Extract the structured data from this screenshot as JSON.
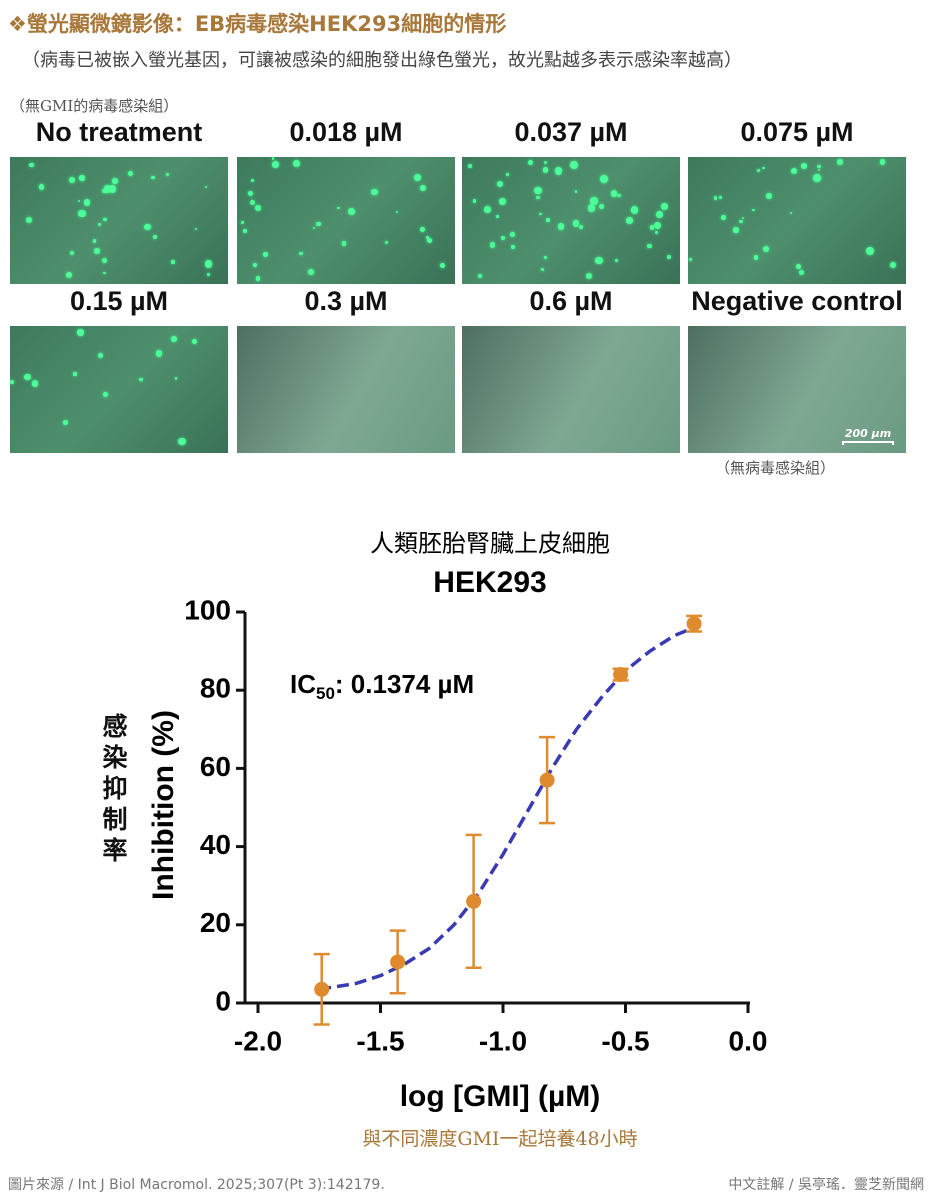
{
  "header": {
    "title": "❖螢光顯微鏡影像：EB病毒感染HEK293細胞的情形",
    "subtitle": "（病毒已被嵌入螢光基因，可讓被感染的細胞發出綠色螢光，故光點越多表示感染率越高）",
    "note_left": "（無GMI的病毒感染組）",
    "note_right": "（無病毒感染組）",
    "scale_bar": "200 µm",
    "panels": [
      "No treatment",
      "0.018 µM",
      "0.037 µM",
      "0.075 µM",
      "0.15 µM",
      "0.3 µM",
      "0.6 µM",
      "Negative control"
    ]
  },
  "chart_data": {
    "type": "scatter",
    "title": "人類胚胎腎臟上皮細胞",
    "subtitle": "HEK293",
    "ylabel_zh": "感染抑制率",
    "ylabel": "Inhibition (%)",
    "xlabel": "log [GMI] (µM)",
    "annotation": {
      "prefix": "IC",
      "subscript": "50",
      "text": ": 0.1374 µM"
    },
    "caption": "與不同濃度GMI一起培養48小時",
    "xlim": [
      -2,
      0
    ],
    "xticks": [
      {
        "value": -2,
        "label": "-2.0"
      },
      -1.5,
      {
        "value": -1,
        "label": "-1.0"
      },
      -0.5,
      {
        "value": 0,
        "label": "0.0"
      }
    ],
    "ylim": [
      0,
      100
    ],
    "yticks": [
      0,
      20,
      40,
      60,
      80,
      100
    ],
    "series": [
      {
        "color": "#e08a2e",
        "x": [
          -1.74,
          -1.43,
          -1.12,
          -0.82,
          -0.52,
          -0.22
        ],
        "values": [
          3.5,
          10.5,
          26,
          57,
          84,
          97
        ],
        "errors": [
          9,
          8,
          17,
          11,
          1.5,
          2
        ]
      }
    ],
    "fit": {
      "color": "#3a3ab4",
      "x": [
        -1.75,
        -1.6,
        -1.5,
        -1.4,
        -1.3,
        -1.2,
        -1.1,
        -1.0,
        -0.9,
        -0.8,
        -0.7,
        -0.6,
        -0.5,
        -0.4,
        -0.3,
        -0.22
      ],
      "values": [
        3.5,
        5,
        7,
        10,
        14,
        20,
        28,
        38,
        49,
        60,
        70,
        78,
        85,
        90,
        94,
        96
      ]
    }
  },
  "footer": {
    "source": "圖片來源 / Int J Biol Macromol. 2025;307(Pt 3):142179.",
    "credit": "中文註解 / 吳亭瑤．靈芝新聞網"
  }
}
